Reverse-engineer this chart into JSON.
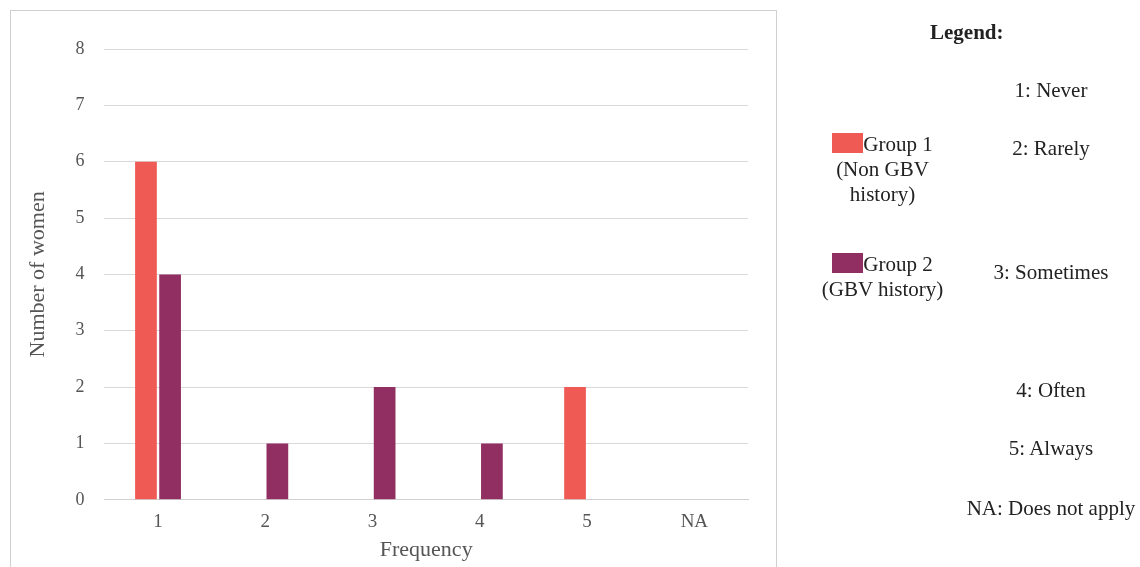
{
  "chart_data": {
    "type": "bar",
    "xlabel": "Frequency",
    "ylabel": "Number of women",
    "categories": [
      "1",
      "2",
      "3",
      "4",
      "5",
      "NA"
    ],
    "series": [
      {
        "name": "Group 1 (Non GBV history)",
        "color": "#f05a55",
        "values": [
          6,
          0,
          0,
          0,
          2,
          0
        ]
      },
      {
        "name": "Group 2 (GBV history)",
        "color": "#922f62",
        "values": [
          4,
          1,
          2,
          1,
          0,
          0
        ]
      }
    ],
    "ylim": [
      0,
      8
    ],
    "yticks": [
      0,
      1,
      2,
      3,
      4,
      5,
      6,
      7,
      8
    ],
    "grid": "y",
    "legend": "right",
    "legend_title": "Legend:",
    "annotations": [
      "1: Never",
      "2: Rarely",
      "3: Sometimes",
      "4: Often",
      "5: Always",
      "NA: Does not apply"
    ]
  }
}
